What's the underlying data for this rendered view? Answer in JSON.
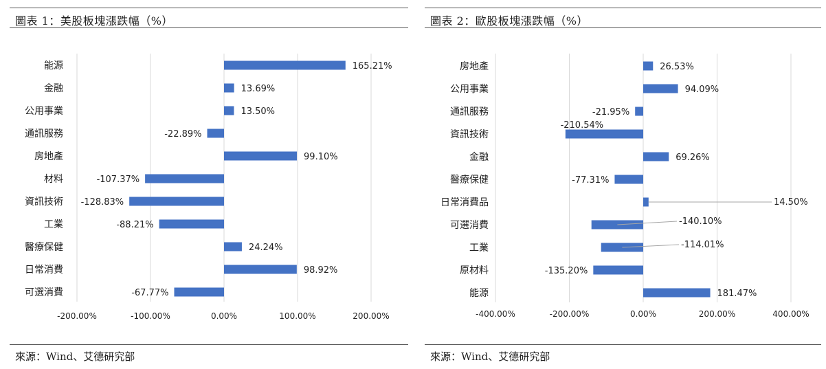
{
  "charts": [
    {
      "title": "圖表 1：美股板塊漲跌幅（%）",
      "source": "來源：Wind、艾德研究部",
      "chart_data": {
        "type": "bar",
        "orientation": "horizontal",
        "categories": [
          "能源",
          "金融",
          "公用事業",
          "通訊服務",
          "房地產",
          "材料",
          "資訊技術",
          "工業",
          "醫療保健",
          "日常消費",
          "可選消費"
        ],
        "values": [
          165.21,
          13.69,
          13.5,
          -22.89,
          99.1,
          -107.37,
          -128.83,
          -88.21,
          24.24,
          98.92,
          -67.77
        ],
        "labels": [
          "165.21%",
          "13.69%",
          "13.50%",
          "-22.89%",
          "99.10%",
          "-107.37%",
          "-128.83%",
          "-88.21%",
          "24.24%",
          "98.92%",
          "-67.77%"
        ],
        "xlim": [
          -200,
          200
        ],
        "xticks": [
          -200,
          -100,
          0,
          100,
          200
        ],
        "xtick_labels": [
          "-200.00%",
          "-100.00%",
          "0.00%",
          "100.00%",
          "200.00%"
        ],
        "grid": true,
        "bar_color": "#4472C4",
        "grid_color": "#d9d9d9"
      }
    },
    {
      "title": "圖表 2：歐股板塊漲跌幅（%）",
      "source": "來源：Wind、艾德研究部",
      "chart_data": {
        "type": "bar",
        "orientation": "horizontal",
        "categories": [
          "房地產",
          "公用事業",
          "通訊服務",
          "資訊技術",
          "金融",
          "醫療保健",
          "日常消費品",
          "可選消費",
          "工業",
          "原材料",
          "能源"
        ],
        "values": [
          26.53,
          94.09,
          -21.95,
          -210.54,
          69.26,
          -77.31,
          14.5,
          -140.1,
          -114.01,
          -135.2,
          181.47
        ],
        "labels": [
          "26.53%",
          "94.09%",
          "-21.95%",
          "-210.54%",
          "69.26%",
          "-77.31%",
          "14.50%",
          "-140.10%",
          "-114.01%",
          "-135.20%",
          "181.47%"
        ],
        "xlim": [
          -400,
          400
        ],
        "xticks": [
          -400,
          -200,
          0,
          200,
          400
        ],
        "xtick_labels": [
          "-400.00%",
          "-200.00%",
          "0.00%",
          "200.00%",
          "400.00%"
        ],
        "grid": true,
        "bar_color": "#4472C4",
        "grid_color": "#d9d9d9"
      }
    }
  ]
}
